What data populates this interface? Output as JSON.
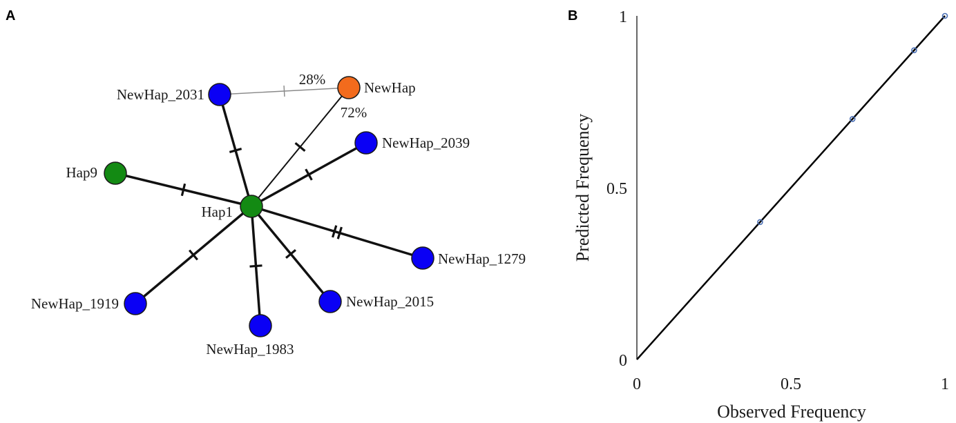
{
  "panels": {
    "a": "A",
    "b": "B"
  },
  "network": {
    "colors": {
      "blue": "#0a00f5",
      "green": "#138a13",
      "orange": "#f26b1d"
    },
    "nodes": [
      {
        "id": "hap1",
        "label": "Hap1",
        "color": "green"
      },
      {
        "id": "hap9",
        "label": "Hap9",
        "color": "green"
      },
      {
        "id": "newhap",
        "label": "NewHap",
        "color": "orange"
      },
      {
        "id": "nh2031",
        "label": "NewHap_2031",
        "color": "blue"
      },
      {
        "id": "nh2039",
        "label": "NewHap_2039",
        "color": "blue"
      },
      {
        "id": "nh1279",
        "label": "NewHap_1279",
        "color": "blue"
      },
      {
        "id": "nh2015",
        "label": "NewHap_2015",
        "color": "blue"
      },
      {
        "id": "nh1983",
        "label": "NewHap_1983",
        "color": "blue"
      },
      {
        "id": "nh1919",
        "label": "NewHap_1919",
        "color": "blue"
      }
    ],
    "edges": [
      {
        "from": "hap1",
        "to": "nh2031",
        "mutations": 1
      },
      {
        "from": "hap1",
        "to": "newhap",
        "mutations": 1,
        "label": "72%"
      },
      {
        "from": "nh2031",
        "to": "newhap",
        "mutations": 1,
        "label": "28%"
      },
      {
        "from": "hap1",
        "to": "nh2039",
        "mutations": 1
      },
      {
        "from": "hap1",
        "to": "hap9",
        "mutations": 1
      },
      {
        "from": "hap1",
        "to": "nh1279",
        "mutations": 2
      },
      {
        "from": "hap1",
        "to": "nh2015",
        "mutations": 1
      },
      {
        "from": "hap1",
        "to": "nh1983",
        "mutations": 1
      },
      {
        "from": "hap1",
        "to": "nh1919",
        "mutations": 1
      }
    ]
  },
  "chart_data": {
    "type": "scatter",
    "xlabel": "Observed Frequency",
    "ylabel": "Predicted Frequency",
    "xlim": [
      0,
      1
    ],
    "ylim": [
      0,
      1
    ],
    "xticks": [
      "0",
      "0.5",
      "1"
    ],
    "yticks": [
      "0",
      "0.5",
      "1"
    ],
    "points": [
      {
        "x": 0.4,
        "y": 0.4
      },
      {
        "x": 0.7,
        "y": 0.7
      },
      {
        "x": 0.9,
        "y": 0.9
      },
      {
        "x": 1.0,
        "y": 1.0
      }
    ],
    "fit_line": {
      "from": [
        0,
        0
      ],
      "to": [
        1,
        1
      ]
    },
    "grid": false,
    "point_color": "#4a6fb5"
  }
}
